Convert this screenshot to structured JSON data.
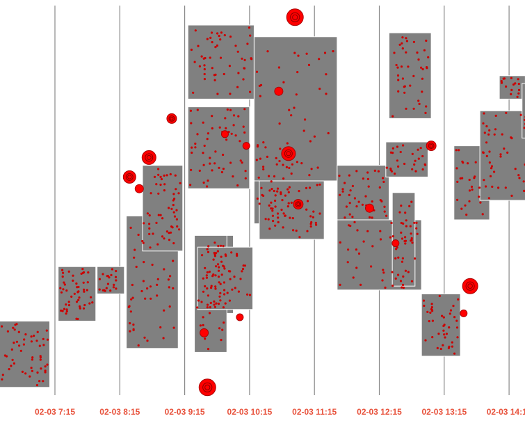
{
  "chart_data": {
    "type": "scatter",
    "title": "",
    "xlabel": "",
    "ylabel": "",
    "x_axis": {
      "tick_labels": [
        "02-03 7:15",
        "02-03 8:15",
        "02-03 9:15",
        "02-03 10:15",
        "02-03 11:15",
        "02-03 12:15",
        "02-03 13:15",
        "02-03 14:15"
      ],
      "grid": true
    },
    "colors": {
      "block": "#808080",
      "point": "#cc0000",
      "marker": "#ff0000",
      "tick_label": "#e8533d",
      "gridline": "#888888"
    },
    "blocks": [
      {
        "x0": 6.3,
        "x1": 7.17,
        "y0": 0.81,
        "y1": 0.98,
        "n": 55,
        "seed": 1
      },
      {
        "x0": 7.3,
        "x1": 7.88,
        "y0": 0.67,
        "y1": 0.81,
        "n": 50,
        "seed": 2
      },
      {
        "x0": 7.9,
        "x1": 8.32,
        "y0": 0.67,
        "y1": 0.74,
        "n": 20,
        "seed": 3
      },
      {
        "x0": 8.35,
        "x1": 9.15,
        "y0": 0.54,
        "y1": 0.88,
        "n": 50,
        "seed": 4
      },
      {
        "x0": 8.6,
        "x1": 9.22,
        "y0": 0.41,
        "y1": 0.63,
        "n": 45,
        "seed": 5
      },
      {
        "x0": 9.3,
        "x1": 10.25,
        "y0": 0.26,
        "y1": 0.47,
        "n": 55,
        "seed": 6
      },
      {
        "x0": 9.3,
        "x1": 10.32,
        "y0": 0.05,
        "y1": 0.24,
        "n": 50,
        "seed": 7
      },
      {
        "x0": 9.5,
        "x1": 10.0,
        "y0": 0.59,
        "y1": 0.79,
        "n": 30,
        "seed": 8
      },
      {
        "x0": 9.4,
        "x1": 9.9,
        "y0": 0.59,
        "y1": 0.89,
        "n": 30,
        "seed": 9
      },
      {
        "x0": 9.45,
        "x1": 10.3,
        "y0": 0.62,
        "y1": 0.78,
        "n": 35,
        "seed": 10
      },
      {
        "x0": 10.32,
        "x1": 11.0,
        "y0": 0.34,
        "y1": 0.56,
        "n": 40,
        "seed": 11
      },
      {
        "x0": 10.4,
        "x1": 11.4,
        "y0": 0.45,
        "y1": 0.6,
        "n": 45,
        "seed": 12
      },
      {
        "x0": 10.32,
        "x1": 11.6,
        "y0": 0.08,
        "y1": 0.45,
        "n": 40,
        "seed": 13
      },
      {
        "x0": 11.6,
        "x1": 12.4,
        "y0": 0.41,
        "y1": 0.55,
        "n": 40,
        "seed": 14
      },
      {
        "x0": 11.6,
        "x1": 12.9,
        "y0": 0.55,
        "y1": 0.73,
        "n": 45,
        "seed": 15
      },
      {
        "x0": 12.35,
        "x1": 13.0,
        "y0": 0.35,
        "y1": 0.44,
        "n": 25,
        "seed": 16
      },
      {
        "x0": 12.4,
        "x1": 13.05,
        "y0": 0.07,
        "y1": 0.29,
        "n": 40,
        "seed": 17
      },
      {
        "x0": 12.45,
        "x1": 12.8,
        "y0": 0.48,
        "y1": 0.72,
        "n": 25,
        "seed": 18
      },
      {
        "x0": 12.9,
        "x1": 13.5,
        "y0": 0.74,
        "y1": 0.9,
        "n": 40,
        "seed": 19
      },
      {
        "x0": 13.4,
        "x1": 13.95,
        "y0": 0.36,
        "y1": 0.55,
        "n": 30,
        "seed": 20
      },
      {
        "x0": 13.8,
        "x1": 14.6,
        "y0": 0.27,
        "y1": 0.5,
        "n": 40,
        "seed": 21
      },
      {
        "x0": 14.1,
        "x1": 14.5,
        "y0": 0.18,
        "y1": 0.24,
        "n": 15,
        "seed": 22
      },
      {
        "x0": 14.45,
        "x1": 14.7,
        "y0": 0.2,
        "y1": 0.34,
        "n": 15,
        "seed": 23
      },
      {
        "x0": 14.5,
        "x1": 14.75,
        "y0": 0.66,
        "y1": 0.73,
        "n": 10,
        "seed": 24
      }
    ],
    "markers": [
      {
        "x": 10.95,
        "y": 0.03,
        "r": 12
      },
      {
        "x": 8.7,
        "y": 0.39,
        "r": 10
      },
      {
        "x": 9.05,
        "y": 0.29,
        "r": 7
      },
      {
        "x": 8.4,
        "y": 0.44,
        "r": 9
      },
      {
        "x": 10.85,
        "y": 0.38,
        "r": 10
      },
      {
        "x": 11.0,
        "y": 0.51,
        "r": 7
      },
      {
        "x": 10.7,
        "y": 0.22,
        "r": 6
      },
      {
        "x": 12.1,
        "y": 0.52,
        "r": 6
      },
      {
        "x": 13.05,
        "y": 0.36,
        "r": 7
      },
      {
        "x": 12.5,
        "y": 0.61,
        "r": 5
      },
      {
        "x": 13.65,
        "y": 0.72,
        "r": 11
      },
      {
        "x": 13.55,
        "y": 0.79,
        "r": 5
      },
      {
        "x": 9.6,
        "y": 0.98,
        "r": 12
      },
      {
        "x": 9.55,
        "y": 0.84,
        "r": 6
      },
      {
        "x": 10.1,
        "y": 0.8,
        "r": 5
      },
      {
        "x": 10.2,
        "y": 0.36,
        "r": 5
      },
      {
        "x": 9.87,
        "y": 0.33,
        "r": 5
      },
      {
        "x": 8.55,
        "y": 0.47,
        "r": 6
      }
    ]
  }
}
